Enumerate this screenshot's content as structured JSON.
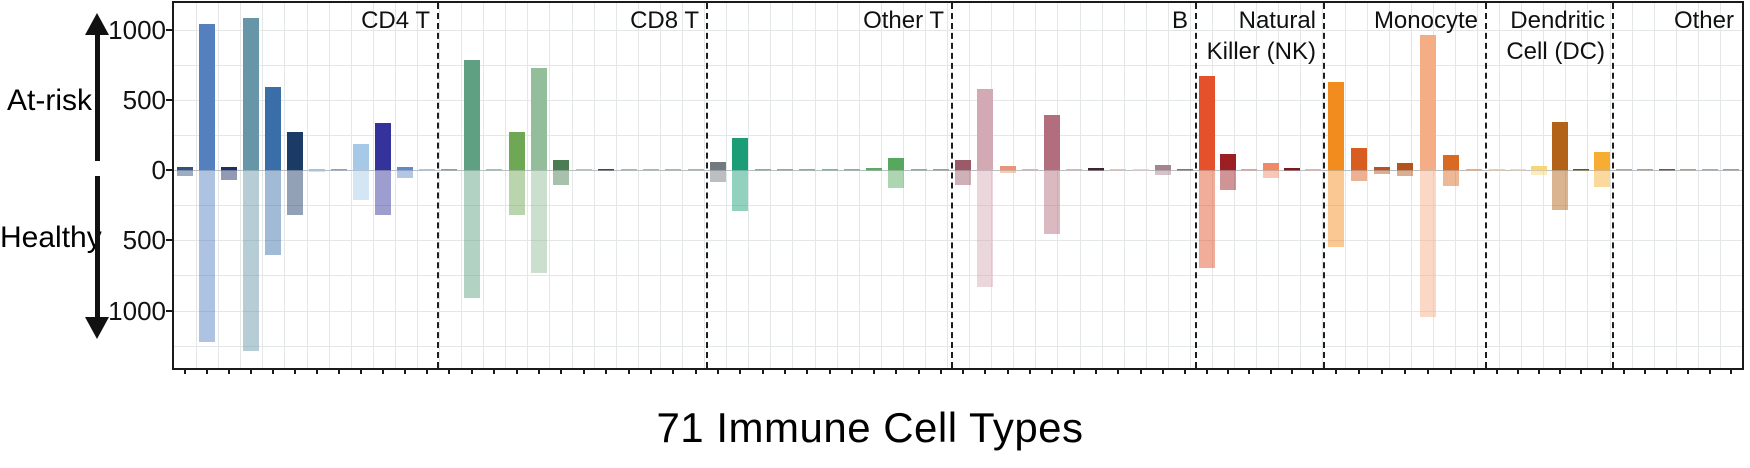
{
  "chart_data": {
    "type": "bar",
    "subtype": "mirrored-diverging-bar",
    "title": "71 Immune Cell Types",
    "n_cell_types": 71,
    "up_direction_label": "At-risk",
    "down_direction_label": "Healthy",
    "y_axis": {
      "tick_labels": [
        "1000",
        "500",
        "0",
        "500",
        "1000"
      ],
      "tick_values": [
        1000,
        500,
        0,
        -500,
        -1000
      ],
      "gridline_step": 250,
      "ylim_up": 1190,
      "ylim_down": -1410
    },
    "legend_position": "none",
    "grid": true,
    "colors": {
      "plot_border": "#1a1a1a",
      "gridline": "#e4e7e8",
      "separator": "#1d1d1d"
    },
    "healthy_opacity": 0.48,
    "sections": [
      {
        "name": "cd4-t",
        "label_lines": [
          "CD4 T"
        ],
        "bars": [
          {
            "at_risk": 20,
            "healthy": 45,
            "color": "#32527e"
          },
          {
            "at_risk": 1040,
            "healthy": 1225,
            "color": "#5580c0"
          },
          {
            "at_risk": 25,
            "healthy": 70,
            "color": "#1e2f63"
          },
          {
            "at_risk": 1085,
            "healthy": 1290,
            "color": "#6796a8"
          },
          {
            "at_risk": 590,
            "healthy": 605,
            "color": "#3a6ea8"
          },
          {
            "at_risk": 270,
            "healthy": 320,
            "color": "#1c3a66"
          },
          {
            "at_risk": 10,
            "healthy": 12,
            "color": "#9dc6e8"
          },
          {
            "at_risk": 8,
            "healthy": 8,
            "color": "#8fa3b8"
          },
          {
            "at_risk": 185,
            "healthy": 210,
            "color": "#a6c9e8"
          },
          {
            "at_risk": 335,
            "healthy": 320,
            "color": "#33339b"
          },
          {
            "at_risk": 20,
            "healthy": 60,
            "color": "#6089c8"
          },
          {
            "at_risk": 3,
            "healthy": 3,
            "color": "#b0c4de"
          }
        ]
      },
      {
        "name": "cd8-t",
        "label_lines": [
          "CD8 T"
        ],
        "bars": [
          {
            "at_risk": 5,
            "healthy": 5,
            "color": "#8aa396"
          },
          {
            "at_risk": 783,
            "healthy": 910,
            "color": "#5fa083"
          },
          {
            "at_risk": 3,
            "healthy": 3,
            "color": "#9cc4a8"
          },
          {
            "at_risk": 270,
            "healthy": 320,
            "color": "#6fa854"
          },
          {
            "at_risk": 728,
            "healthy": 733,
            "color": "#93bd9b"
          },
          {
            "at_risk": 70,
            "healthy": 105,
            "color": "#4a7d52"
          },
          {
            "at_risk": 5,
            "healthy": 5,
            "color": "#b8c8b8"
          },
          {
            "at_risk": 9,
            "healthy": 4,
            "color": "#3d4a52"
          },
          {
            "at_risk": 2,
            "healthy": 2,
            "color": "#a8b8a8"
          },
          {
            "at_risk": 2,
            "healthy": 2,
            "color": "#a8b8a8"
          },
          {
            "at_risk": 2,
            "healthy": 2,
            "color": "#a8b8a8"
          },
          {
            "at_risk": 2,
            "healthy": 2,
            "color": "#a8b8a8"
          }
        ]
      },
      {
        "name": "other-t",
        "label_lines": [
          "Other T"
        ],
        "bars": [
          {
            "at_risk": 55,
            "healthy": 85,
            "color": "#707a80"
          },
          {
            "at_risk": 230,
            "healthy": 290,
            "color": "#1b9e77"
          },
          {
            "at_risk": 3,
            "healthy": 3,
            "color": "#8fae96"
          },
          {
            "at_risk": 2,
            "healthy": 2,
            "color": "#8fae96"
          },
          {
            "at_risk": 2,
            "healthy": 2,
            "color": "#8fae96"
          },
          {
            "at_risk": 8,
            "healthy": 8,
            "color": "#7fb88a"
          },
          {
            "at_risk": 2,
            "healthy": 2,
            "color": "#8fae96"
          },
          {
            "at_risk": 12,
            "healthy": 10,
            "color": "#5fa868"
          },
          {
            "at_risk": 85,
            "healthy": 130,
            "color": "#56a85e"
          },
          {
            "at_risk": 2,
            "healthy": 2,
            "color": "#8fae96"
          },
          {
            "at_risk": 8,
            "healthy": 8,
            "color": "#95a29a"
          }
        ]
      },
      {
        "name": "b",
        "label_lines": [
          "B"
        ],
        "bars": [
          {
            "at_risk": 75,
            "healthy": 105,
            "color": "#9a5a68"
          },
          {
            "at_risk": 577,
            "healthy": 834,
            "color": "#d3a9b3"
          },
          {
            "at_risk": 30,
            "healthy": 20,
            "color": "#e89577"
          },
          {
            "at_risk": 2,
            "healthy": 2,
            "color": "#dcb6b6"
          },
          {
            "at_risk": 395,
            "healthy": 455,
            "color": "#b26e7c"
          },
          {
            "at_risk": 2,
            "healthy": 2,
            "color": "#dcb6b6"
          },
          {
            "at_risk": 12,
            "healthy": 5,
            "color": "#3f2430"
          },
          {
            "at_risk": 8,
            "healthy": 8,
            "color": "#efc0ab"
          },
          {
            "at_risk": 8,
            "healthy": 8,
            "color": "#f2d0c8"
          },
          {
            "at_risk": 35,
            "healthy": 38,
            "color": "#a5848f"
          },
          {
            "at_risk": 4,
            "healthy": 4,
            "color": "#8a7078"
          }
        ]
      },
      {
        "name": "nk",
        "label_lines": [
          "Natural",
          "Killer (NK)"
        ],
        "bars": [
          {
            "at_risk": 670,
            "healthy": 700,
            "color": "#e4512b"
          },
          {
            "at_risk": 115,
            "healthy": 140,
            "color": "#9c1f24"
          },
          {
            "at_risk": 4,
            "healthy": 4,
            "color": "#e8a090"
          },
          {
            "at_risk": 50,
            "healthy": 58,
            "color": "#ef8a68"
          },
          {
            "at_risk": 15,
            "healthy": 10,
            "color": "#7a1a1e"
          },
          {
            "at_risk": 4,
            "healthy": 4,
            "color": "#f0b0a0"
          }
        ]
      },
      {
        "name": "monocyte",
        "label_lines": [
          "Monocyte"
        ],
        "bars": [
          {
            "at_risk": 630,
            "healthy": 545,
            "color": "#f28c1e"
          },
          {
            "at_risk": 155,
            "healthy": 80,
            "color": "#d85d20"
          },
          {
            "at_risk": 25,
            "healthy": 30,
            "color": "#b4531e"
          },
          {
            "at_risk": 48,
            "healthy": 40,
            "color": "#b4531e"
          },
          {
            "at_risk": 960,
            "healthy": 1045,
            "color": "#f5ad85"
          },
          {
            "at_risk": 105,
            "healthy": 110,
            "color": "#d96a24"
          },
          {
            "at_risk": 5,
            "healthy": 5,
            "color": "#f5a96a"
          }
        ]
      },
      {
        "name": "dc",
        "label_lines": [
          "Dendritic",
          "Cell (DC)"
        ],
        "bars": [
          {
            "at_risk": 3,
            "healthy": 3,
            "color": "#f0d0a0"
          },
          {
            "at_risk": 3,
            "healthy": 3,
            "color": "#f0d8b0"
          },
          {
            "at_risk": 32,
            "healthy": 35,
            "color": "#f7d678"
          },
          {
            "at_risk": 345,
            "healthy": 285,
            "color": "#b26317"
          },
          {
            "at_risk": 10,
            "healthy": 5,
            "color": "#6a5520"
          },
          {
            "at_risk": 125,
            "healthy": 120,
            "color": "#f7ad33"
          }
        ]
      },
      {
        "name": "other",
        "label_lines": [
          "Other"
        ],
        "bars": [
          {
            "at_risk": 1,
            "healthy": 1,
            "color": "#aaaaaa"
          },
          {
            "at_risk": 3,
            "healthy": 3,
            "color": "#b0a090"
          },
          {
            "at_risk": 7,
            "healthy": 4,
            "color": "#6a5a4a"
          },
          {
            "at_risk": 3,
            "healthy": 3,
            "color": "#b0a090"
          },
          {
            "at_risk": 1,
            "healthy": 1,
            "color": "#aaaaaa"
          },
          {
            "at_risk": 3,
            "healthy": 3,
            "color": "#a0a0a0"
          }
        ]
      }
    ]
  }
}
